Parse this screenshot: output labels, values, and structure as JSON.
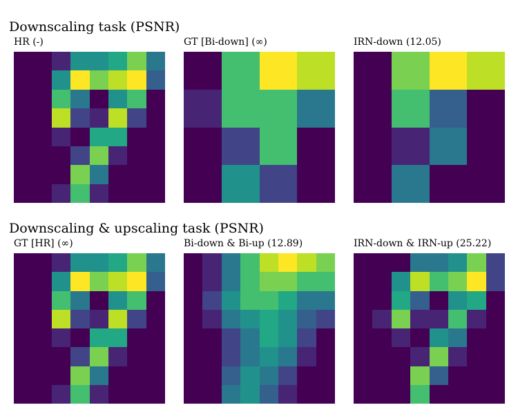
{
  "sections": [
    {
      "title": "Downscaling task (PSNR)"
    },
    {
      "title": "Downscaling & upscaling task (PSNR)"
    }
  ],
  "colors": {
    "viridis": [
      "#440154",
      "#482475",
      "#414487",
      "#355f8d",
      "#2a788e",
      "#21918c",
      "#22a884",
      "#44bf70",
      "#7ad151",
      "#bddf26",
      "#fde725"
    ]
  },
  "chart_data": [
    {
      "type": "heatmap",
      "title": "HR (-)",
      "grid": false,
      "colormap": "viridis",
      "rows": 8,
      "cols": 8,
      "values": [
        [
          0,
          0,
          1,
          5,
          5,
          6,
          8,
          4
        ],
        [
          0,
          0,
          5,
          10,
          8,
          9,
          10,
          3
        ],
        [
          0,
          0,
          7,
          4,
          0,
          5,
          7,
          0
        ],
        [
          0,
          0,
          9,
          2,
          1,
          9,
          2,
          0
        ],
        [
          0,
          0,
          1,
          0,
          6,
          6,
          0,
          0
        ],
        [
          0,
          0,
          0,
          2,
          8,
          1,
          0,
          0
        ],
        [
          0,
          0,
          0,
          8,
          4,
          0,
          0,
          0
        ],
        [
          0,
          0,
          1,
          7,
          1,
          0,
          0,
          0
        ]
      ]
    },
    {
      "type": "heatmap",
      "title": "GT [Bi-down] (∞)",
      "grid": false,
      "colormap": "viridis",
      "rows": 4,
      "cols": 4,
      "values": [
        [
          0,
          7,
          10,
          9
        ],
        [
          1,
          7,
          7,
          4
        ],
        [
          0,
          2,
          7,
          0
        ],
        [
          0,
          5,
          2,
          0
        ]
      ]
    },
    {
      "type": "heatmap",
      "title": "IRN-down (12.05)",
      "grid": false,
      "colormap": "viridis",
      "rows": 4,
      "cols": 4,
      "values": [
        [
          0,
          8,
          10,
          9
        ],
        [
          0,
          7,
          3,
          0
        ],
        [
          0,
          1,
          4,
          0
        ],
        [
          0,
          4,
          0,
          0
        ]
      ]
    },
    {
      "type": "heatmap",
      "title": "GT [HR] (∞)",
      "grid": false,
      "colormap": "viridis",
      "rows": 8,
      "cols": 8,
      "values": [
        [
          0,
          0,
          1,
          5,
          5,
          6,
          8,
          4
        ],
        [
          0,
          0,
          5,
          10,
          8,
          9,
          10,
          3
        ],
        [
          0,
          0,
          7,
          4,
          0,
          5,
          7,
          0
        ],
        [
          0,
          0,
          9,
          2,
          1,
          9,
          2,
          0
        ],
        [
          0,
          0,
          1,
          0,
          6,
          6,
          0,
          0
        ],
        [
          0,
          0,
          0,
          2,
          8,
          1,
          0,
          0
        ],
        [
          0,
          0,
          0,
          8,
          4,
          0,
          0,
          0
        ],
        [
          0,
          0,
          1,
          7,
          1,
          0,
          0,
          0
        ]
      ]
    },
    {
      "type": "heatmap",
      "title": "Bi-down & Bi-up (12.89)",
      "grid": false,
      "colormap": "viridis",
      "rows": 8,
      "cols": 8,
      "values": [
        [
          0,
          1,
          4,
          7,
          9,
          10,
          9,
          8
        ],
        [
          0,
          1,
          4,
          7,
          8,
          8,
          7,
          7
        ],
        [
          0,
          2,
          5,
          7,
          7,
          6,
          4,
          4
        ],
        [
          0,
          1,
          4,
          5,
          6,
          5,
          3,
          2
        ],
        [
          0,
          0,
          2,
          4,
          6,
          5,
          2,
          0
        ],
        [
          0,
          0,
          2,
          4,
          5,
          4,
          1,
          0
        ],
        [
          0,
          0,
          3,
          5,
          4,
          2,
          0,
          0
        ],
        [
          0,
          0,
          4,
          5,
          3,
          1,
          0,
          0
        ]
      ]
    },
    {
      "type": "heatmap",
      "title": "IRN-down & IRN-up (25.22)",
      "grid": false,
      "colormap": "viridis",
      "rows": 8,
      "cols": 8,
      "values": [
        [
          0,
          0,
          0,
          4,
          4,
          5,
          8,
          2
        ],
        [
          0,
          0,
          5,
          9,
          7,
          8,
          10,
          2
        ],
        [
          0,
          0,
          6,
          3,
          0,
          5,
          6,
          0
        ],
        [
          0,
          1,
          8,
          1,
          1,
          7,
          1,
          0
        ],
        [
          0,
          0,
          1,
          0,
          5,
          4,
          0,
          0
        ],
        [
          0,
          0,
          0,
          1,
          8,
          1,
          0,
          0
        ],
        [
          0,
          0,
          0,
          8,
          3,
          0,
          0,
          0
        ],
        [
          0,
          0,
          0,
          7,
          0,
          0,
          0,
          0
        ]
      ]
    }
  ]
}
